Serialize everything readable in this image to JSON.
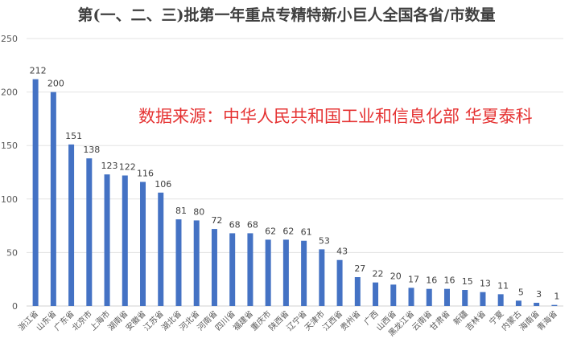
{
  "chart_data": {
    "type": "bar",
    "title": "第(一、二、三)批第一年重点专精特新小巨人全国各省/市数量",
    "annotation": "数据来源：中华人民共和国工业和信息化部 华夏泰科",
    "xlabel": "",
    "ylabel": "",
    "ylim": [
      0,
      250
    ],
    "yticks": [
      0,
      50,
      100,
      150,
      200,
      250
    ],
    "grid": true,
    "legend": null,
    "bar_color": "#4472C4",
    "annotation_color": "#E53333",
    "categories": [
      "浙江省",
      "山东省",
      "广东省",
      "北京市",
      "上海市",
      "湖南省",
      "安徽省",
      "江苏省",
      "湖北省",
      "河北省",
      "河南省",
      "四川省",
      "福建省",
      "重庆市",
      "陕西省",
      "辽宁省",
      "天津市",
      "江西省",
      "贵州省",
      "广西",
      "山西省",
      "黑龙江省",
      "云南省",
      "甘肃省",
      "新疆",
      "吉林省",
      "宁夏",
      "内蒙古",
      "海南省",
      "青海省"
    ],
    "values": [
      212,
      200,
      151,
      138,
      123,
      122,
      116,
      106,
      81,
      80,
      72,
      68,
      68,
      62,
      62,
      61,
      53,
      43,
      27,
      22,
      20,
      17,
      16,
      16,
      15,
      13,
      11,
      5,
      3,
      1
    ]
  }
}
